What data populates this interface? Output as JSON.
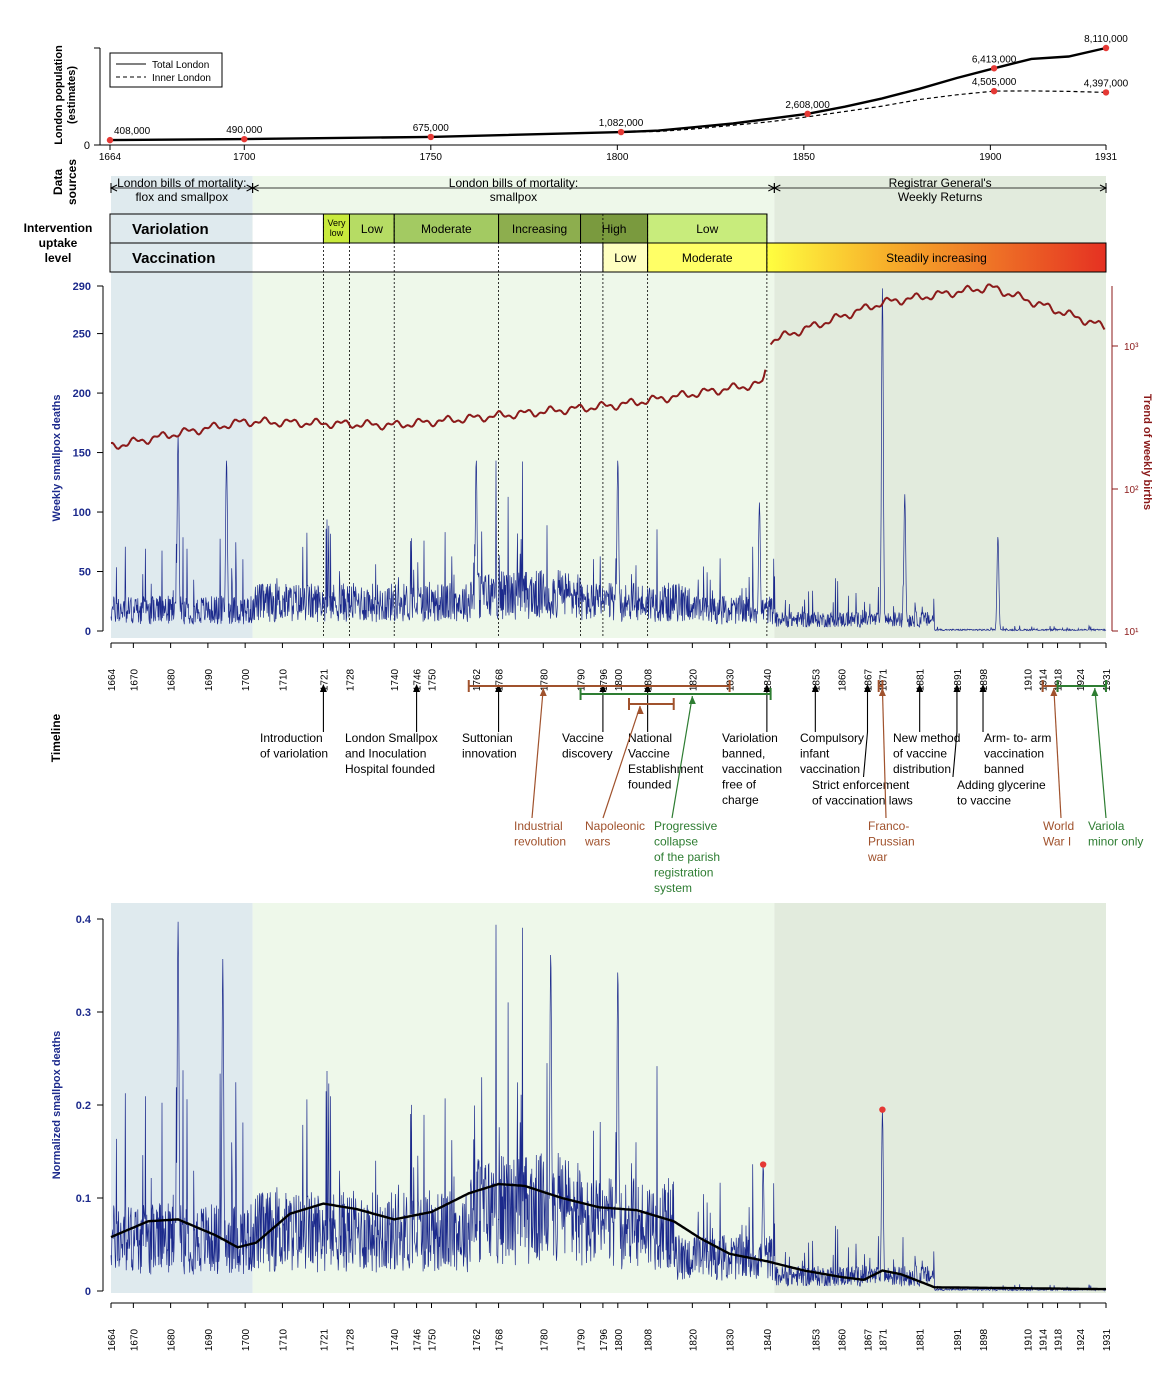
{
  "colors": {
    "blue": "#1c2a8c",
    "maroon": "#8b1a1a",
    "orange_brown": "#a0522d",
    "green": "#2e7d32",
    "red_dot": "#e53935",
    "shade_early": "#dfeaee",
    "shade_mid": "#eef8ea",
    "shade_late": "#e2ebdd"
  },
  "chart_data": [
    {
      "type": "line",
      "ylabel": "London population (estimates)",
      "xlim": [
        1664,
        1931
      ],
      "x_ticks": [
        1664,
        1700,
        1750,
        1800,
        1850,
        1900,
        1931
      ],
      "legend": {
        "position": "top-left",
        "entries": [
          "Total London",
          "Inner London"
        ]
      },
      "series": [
        {
          "name": "Total London",
          "x": [
            1664,
            1700,
            1750,
            1801,
            1811,
            1821,
            1831,
            1841,
            1851,
            1861,
            1871,
            1881,
            1891,
            1901,
            1911,
            1921,
            1931
          ],
          "values": [
            408000,
            490000,
            675000,
            1082000,
            1200000,
            1500000,
            1800000,
            2200000,
            2608000,
            3200000,
            3900000,
            4700000,
            5600000,
            6413000,
            7200000,
            7400000,
            8110000
          ]
        },
        {
          "name": "Inner London",
          "x": [
            1801,
            1811,
            1821,
            1831,
            1841,
            1851,
            1861,
            1871,
            1881,
            1891,
            1901,
            1911,
            1921,
            1931
          ],
          "values": [
            1082000,
            1130000,
            1350000,
            1650000,
            1950000,
            2360000,
            2800000,
            3250000,
            3800000,
            4200000,
            4505000,
            4520000,
            4480000,
            4397000
          ]
        }
      ],
      "labeled_points": [
        {
          "x": 1664,
          "value": 408000,
          "label": "408,000"
        },
        {
          "x": 1700,
          "value": 490000,
          "label": "490,000"
        },
        {
          "x": 1750,
          "value": 675000,
          "label": "675,000"
        },
        {
          "x": 1801,
          "value": 1082000,
          "label": "1,082,000"
        },
        {
          "x": 1851,
          "value": 2608000,
          "label": "2,608,000"
        },
        {
          "x": 1901,
          "value": 6413000,
          "label": "6,413,000"
        },
        {
          "x": 1901,
          "value": 4505000,
          "label": "4,505,000"
        },
        {
          "x": 1931,
          "value": 8110000,
          "label": "8,110,000"
        },
        {
          "x": 1931,
          "value": 4397000,
          "label": "4,397,000"
        }
      ]
    },
    {
      "type": "line",
      "ylabel": "Weekly smallpox deaths",
      "y2label": "Trend of weekly births",
      "ylim": [
        0,
        290
      ],
      "y_ticks": [
        0,
        50,
        100,
        150,
        200,
        250,
        290
      ],
      "y2_scale": "log",
      "y2_ticks": [
        "10¹",
        "10²",
        "10³"
      ],
      "x_ticks": [
        1664,
        1670,
        1680,
        1690,
        1700,
        1710,
        1721,
        1728,
        1740,
        1746,
        1750,
        1762,
        1768,
        1780,
        1790,
        1796,
        1800,
        1808,
        1820,
        1830,
        1840,
        1853,
        1860,
        1867,
        1871,
        1881,
        1891,
        1898,
        1910,
        1914,
        1918,
        1924,
        1931
      ],
      "approx_peaks": [
        {
          "x": 1682,
          "value": 165
        },
        {
          "x": 1695,
          "value": 145
        },
        {
          "x": 1762,
          "value": 145
        },
        {
          "x": 1800,
          "value": 145
        },
        {
          "x": 1838,
          "value": 108
        },
        {
          "x": 1871,
          "value": 288
        },
        {
          "x": 1877,
          "value": 115
        },
        {
          "x": 1902,
          "value": 80
        }
      ],
      "births_trend_anchor_values": [
        {
          "x": 1664,
          "value": 155
        },
        {
          "x": 1680,
          "value": 165
        },
        {
          "x": 1700,
          "value": 176
        },
        {
          "x": 1740,
          "value": 173
        },
        {
          "x": 1800,
          "value": 190
        },
        {
          "x": 1839,
          "value": 208
        },
        {
          "x": 1841,
          "value": 244
        },
        {
          "x": 1871,
          "value": 276
        },
        {
          "x": 1900,
          "value": 289
        },
        {
          "x": 1931,
          "value": 255
        }
      ],
      "data_sources": [
        {
          "label": "London bills of mortality:\nflox and smallpox",
          "from": 1664,
          "to": 1702
        },
        {
          "label": "London bills of mortality:\nsmallpox",
          "from": 1702,
          "to": 1842
        },
        {
          "label": "Registrar General's\nWeekly Returns",
          "from": 1842,
          "to": 1931
        }
      ],
      "row_labels": {
        "data_sources": "Data\nsources",
        "intervention": "Intervention\nuptake\nlevel",
        "timeline": "Timeline"
      },
      "variolation_label": "Variolation",
      "vaccination_label": "Vaccination",
      "variolation_levels": [
        {
          "label": "Very\nlow",
          "from": 1721,
          "to": 1728,
          "color": "#c8ea3c"
        },
        {
          "label": "Low",
          "from": 1728,
          "to": 1740,
          "color": "#b6dc64"
        },
        {
          "label": "Moderate",
          "from": 1740,
          "to": 1768,
          "color": "#a3ca62"
        },
        {
          "label": "Increasing",
          "from": 1768,
          "to": 1790,
          "color": "#8dae4e"
        },
        {
          "label": "High",
          "from": 1790,
          "to": 1808,
          "color": "#7a9a3e"
        },
        {
          "label": "Low",
          "from": 1808,
          "to": 1840,
          "color": "#c8ec7c"
        }
      ],
      "vaccination_levels": [
        {
          "label": "Low",
          "from": 1796,
          "to": 1808,
          "color": "#ffffc0"
        },
        {
          "label": "Moderate",
          "from": 1808,
          "to": 1840,
          "color": "#ffff66"
        },
        {
          "label": "Steadily increasing",
          "from": 1840,
          "to": 1931,
          "color": "gradient"
        }
      ],
      "timeline_events": [
        {
          "year": 1721,
          "label": "Introduction\nof variolation"
        },
        {
          "year": 1746,
          "label": "London Smallpox\nand Inoculation\nHospital founded"
        },
        {
          "year": 1768,
          "label": "Suttonian\ninnovation"
        },
        {
          "year": 1796,
          "label": "Vaccine\ndiscovery"
        },
        {
          "year": 1808,
          "label": "National\nVaccine\nEstablishment\nfounded"
        },
        {
          "year": 1840,
          "label": "Variolation\nbanned,\nvaccination\nfree of\ncharge"
        },
        {
          "year": 1853,
          "label": "Compulsory\ninfant\nvaccination"
        },
        {
          "year": 1867,
          "label": "Strict enforcement\nof vaccination laws"
        },
        {
          "year": 1881,
          "label": "New method\nof vaccine\ndistribution"
        },
        {
          "year": 1891,
          "label": "Adding glycerine\nto vaccine"
        },
        {
          "year": 1898,
          "label": "Arm- to- arm\nvaccination\nbanned"
        }
      ],
      "timeline_periods": [
        {
          "label": "Industrial\nrevolution",
          "from": 1760,
          "to": 1830,
          "color": "orange"
        },
        {
          "label": "Napoleonic\nwars",
          "from": 1803,
          "to": 1815,
          "color": "orange"
        },
        {
          "label": "Progressive\ncollapse\nof the parish\nregistration\nsystem",
          "from": 1790,
          "to": 1841,
          "color": "green"
        },
        {
          "label": "Franco-\nPrussian\nwar",
          "from": 1870,
          "to": 1871,
          "color": "orange"
        },
        {
          "label": "World\nWar I",
          "from": 1914,
          "to": 1918,
          "color": "orange"
        },
        {
          "label": "Variola\nminor only",
          "from": 1918,
          "to": 1931,
          "color": "green"
        }
      ]
    },
    {
      "type": "line",
      "ylabel": "Normalized smallpox deaths",
      "ylim": [
        0,
        0.4
      ],
      "y_ticks": [
        0,
        0.1,
        0.2,
        0.3,
        0.4
      ],
      "x_ticks": [
        1664,
        1670,
        1680,
        1690,
        1700,
        1710,
        1721,
        1728,
        1740,
        1746,
        1750,
        1762,
        1768,
        1780,
        1790,
        1796,
        1800,
        1808,
        1820,
        1830,
        1840,
        1853,
        1860,
        1867,
        1871,
        1881,
        1891,
        1898,
        1910,
        1914,
        1918,
        1924,
        1931
      ],
      "approx_peaks": [
        {
          "x": 1682,
          "value": 0.397
        },
        {
          "x": 1694,
          "value": 0.357
        },
        {
          "x": 1782,
          "value": 0.366
        },
        {
          "x": 1800,
          "value": 0.347
        },
        {
          "x": 1839,
          "value": 0.136
        },
        {
          "x": 1871,
          "value": 0.195
        }
      ],
      "trend": {
        "x": [
          1664,
          1674,
          1682,
          1692,
          1698,
          1703,
          1712,
          1721,
          1730,
          1740,
          1750,
          1760,
          1768,
          1775,
          1785,
          1795,
          1805,
          1815,
          1822,
          1830,
          1840,
          1850,
          1860,
          1866,
          1871,
          1876,
          1885,
          1931
        ],
        "values": [
          0.058,
          0.075,
          0.077,
          0.06,
          0.047,
          0.052,
          0.083,
          0.094,
          0.088,
          0.077,
          0.085,
          0.105,
          0.115,
          0.113,
          0.1,
          0.09,
          0.087,
          0.075,
          0.057,
          0.04,
          0.032,
          0.022,
          0.015,
          0.012,
          0.022,
          0.018,
          0.004,
          0.002
        ]
      },
      "highlighted_points": [
        {
          "x": 1839,
          "value": 0.136
        },
        {
          "x": 1871,
          "value": 0.195
        }
      ]
    }
  ]
}
